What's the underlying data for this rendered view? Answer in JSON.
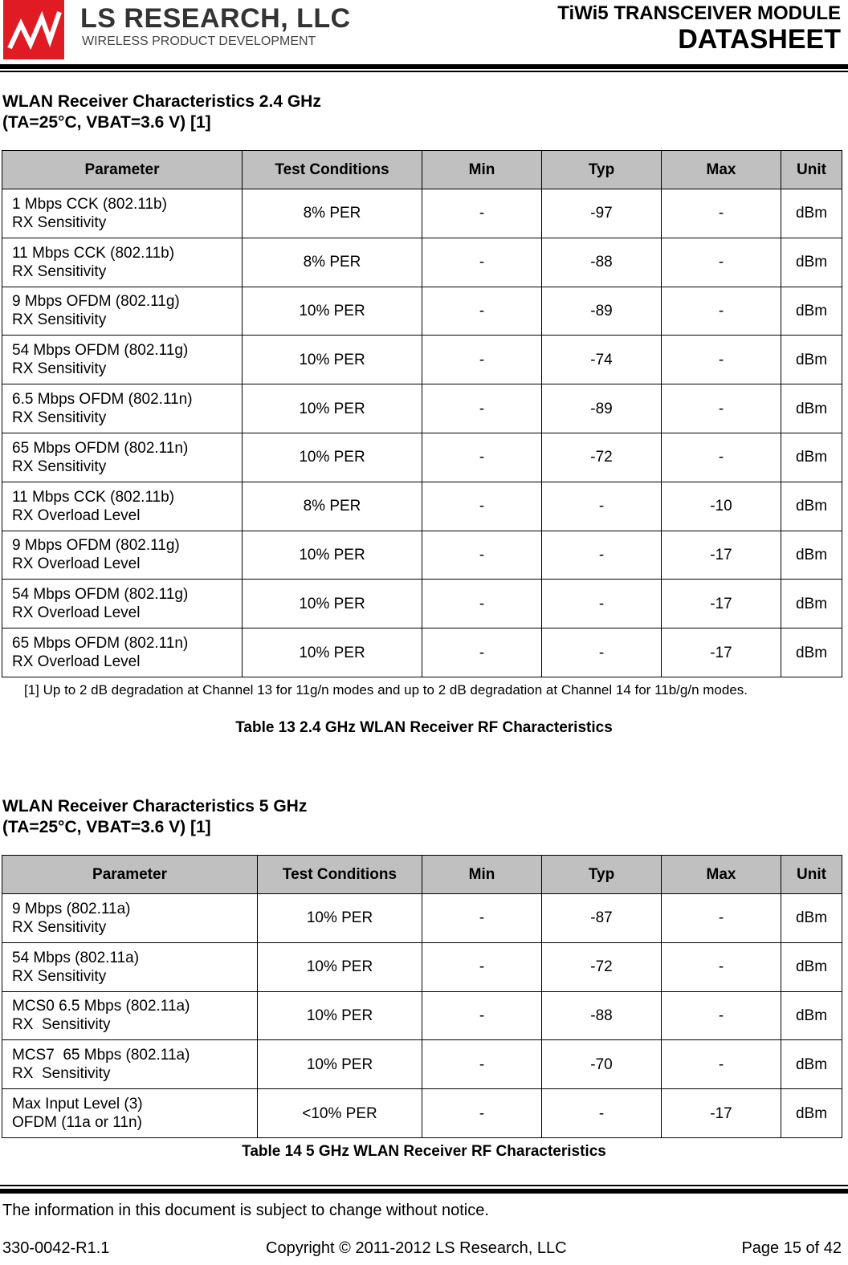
{
  "header": {
    "company": "LS RESEARCH, LLC",
    "tagline": "WIRELESS PRODUCT DEVELOPMENT",
    "module": "TiWi5 TRANSCEIVER MODULE",
    "doc_type": "DATASHEET",
    "brand_color": "#e01b24"
  },
  "section1": {
    "title_line1": "WLAN Receiver Characteristics 2.4 GHz",
    "title_line2": "(TA=25°C, VBAT=3.6 V) [1]"
  },
  "section2": {
    "title_line1": "WLAN Receiver Characteristics 5 GHz",
    "title_line2": "(TA=25°C, VBAT=3.6 V) [1]"
  },
  "columns": [
    "Parameter",
    "Test Conditions",
    "Min",
    "Typ",
    "Max",
    "Unit"
  ],
  "table1": {
    "rows": [
      [
        "1 Mbps CCK (802.11b)\nRX Sensitivity",
        "8% PER",
        "-",
        "-97",
        "-",
        "dBm"
      ],
      [
        "11 Mbps CCK (802.11b)\nRX Sensitivity",
        "8% PER",
        "-",
        "-88",
        "-",
        "dBm"
      ],
      [
        "9 Mbps OFDM (802.11g)\nRX Sensitivity",
        "10% PER",
        "-",
        "-89",
        "-",
        "dBm"
      ],
      [
        "54 Mbps OFDM (802.11g)\nRX Sensitivity",
        "10% PER",
        "-",
        "-74",
        "-",
        "dBm"
      ],
      [
        "6.5 Mbps OFDM (802.11n)\nRX Sensitivity",
        "10% PER",
        "-",
        "-89",
        "-",
        "dBm"
      ],
      [
        "65 Mbps OFDM (802.11n)\nRX Sensitivity",
        "10% PER",
        "-",
        "-72",
        "-",
        "dBm"
      ],
      [
        "11 Mbps CCK (802.11b)\nRX Overload Level",
        "8% PER",
        "-",
        "-",
        "-10",
        "dBm"
      ],
      [
        "9 Mbps OFDM (802.11g)\nRX Overload Level",
        "10% PER",
        "-",
        "-",
        "-17",
        "dBm"
      ],
      [
        "54 Mbps OFDM (802.11g)\nRX Overload Level",
        "10% PER",
        "-",
        "-",
        "-17",
        "dBm"
      ],
      [
        "65 Mbps OFDM (802.11n)\nRX Overload Level",
        "10% PER",
        "-",
        "-",
        "-17",
        "dBm"
      ]
    ],
    "footnote": "[1] Up to 2 dB degradation at Channel 13 for 11g/n modes and up to 2 dB degradation at Channel 14 for 11b/g/n modes.",
    "caption": "Table 13 2.4 GHz WLAN Receiver RF Characteristics"
  },
  "table2": {
    "rows": [
      [
        "9 Mbps (802.11a)\nRX Sensitivity",
        "10% PER",
        "-",
        "-87",
        "-",
        "dBm"
      ],
      [
        "54 Mbps (802.11a)\nRX Sensitivity",
        "10% PER",
        "-",
        "-72",
        "-",
        "dBm"
      ],
      [
        "MCS0 6.5 Mbps (802.11a)\nRX  Sensitivity",
        "10% PER",
        "-",
        "-88",
        "-",
        "dBm"
      ],
      [
        "MCS7  65 Mbps (802.11a)\nRX  Sensitivity",
        "10% PER",
        "-",
        "-70",
        "-",
        "dBm"
      ],
      [
        "Max Input Level (3)\nOFDM (11a or 11n)",
        "<10% PER",
        "-",
        "-",
        "-17",
        "dBm"
      ]
    ],
    "caption": "Table 14 5 GHz WLAN Receiver RF Characteristics"
  },
  "footer": {
    "notice": "The information in this document is subject to change without notice.",
    "doc_number": "330-0042-R1.1",
    "copyright": "Copyright © 2011-2012 LS Research, LLC",
    "page": "Page 15 of 42"
  }
}
